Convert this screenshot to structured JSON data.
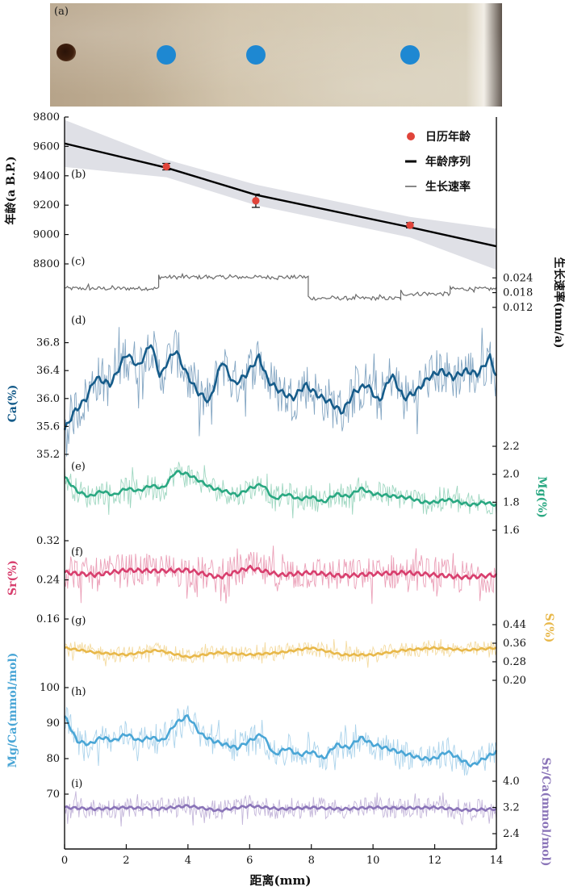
{
  "photo": {
    "label": "(a)",
    "sample_points_mm": [
      3.3,
      6.2,
      11.2
    ],
    "point_color": "#1e88d2"
  },
  "legend": {
    "calendar_age": "日历年龄",
    "age_series": "年龄序列",
    "growth_rate": "生长速率"
  },
  "x_axis": {
    "label": "距离(mm)",
    "range": [
      0,
      14
    ],
    "ticks": [
      "0",
      "2",
      "4",
      "6",
      "8",
      "10",
      "12",
      "14"
    ]
  },
  "chart_data": [
    {
      "panel": "(b)",
      "type": "line",
      "ylabel": "年龄(a B.P.)",
      "ylim": [
        8800,
        9800
      ],
      "yticks": [
        "9800",
        "9600",
        "9400",
        "9200",
        "9000",
        "8800"
      ],
      "age_model": {
        "x": [
          0,
          3.3,
          6.2,
          11.2,
          14
        ],
        "y": [
          9620,
          9455,
          9270,
          9050,
          8920
        ]
      },
      "uncertainty_band": {
        "x": [
          0,
          3.3,
          6.2,
          11.2,
          14
        ],
        "upper": [
          9780,
          9510,
          9340,
          9120,
          9040
        ],
        "lower": [
          9460,
          9390,
          9200,
          8980,
          8760
        ]
      },
      "calendar_ages": [
        {
          "x": 3.3,
          "y": 9462,
          "err": 22
        },
        {
          "x": 6.2,
          "y": 9230,
          "err": 45
        },
        {
          "x": 11.2,
          "y": 9063,
          "err": 18
        }
      ],
      "colors": {
        "line": "#000000",
        "band": "#dfe0e6",
        "points": "#e0443a"
      }
    },
    {
      "panel": "(c)",
      "type": "line",
      "ylabel": "生长速率(mm/a)",
      "yticks": [
        "0.024",
        "0.018",
        "0.012"
      ],
      "ylim": [
        0.009,
        0.032
      ],
      "segments": [
        {
          "x0": 0,
          "x1": 3.05,
          "value": 0.0197
        },
        {
          "x0": 3.05,
          "x1": 7.9,
          "value": 0.0243
        },
        {
          "x0": 7.9,
          "x1": 10.9,
          "value": 0.0157
        },
        {
          "x0": 10.9,
          "x1": 12.5,
          "value": 0.0175
        },
        {
          "x0": 12.5,
          "x1": 14,
          "value": 0.0195
        }
      ],
      "color": "#6b6b6b"
    },
    {
      "panel": "(d)",
      "type": "line",
      "ylabel": "Ca(%)",
      "ylim": [
        35.2,
        37.2
      ],
      "yticks": [
        "36.8",
        "36.4",
        "36.0",
        "35.6",
        "35.2"
      ],
      "smooth": {
        "x": [
          0,
          0.3,
          0.7,
          1.0,
          1.5,
          2.0,
          2.4,
          2.8,
          3.1,
          3.3,
          3.6,
          3.9,
          4.3,
          4.7,
          5.1,
          5.5,
          5.9,
          6.3,
          6.6,
          7.0,
          7.4,
          7.8,
          8.2,
          8.6,
          9.0,
          9.4,
          9.8,
          10.2,
          10.6,
          11.0,
          11.4,
          11.8,
          12.2,
          12.6,
          13.0,
          13.4,
          13.8,
          14.0
        ],
        "y": [
          35.55,
          35.8,
          36.0,
          36.3,
          36.2,
          36.65,
          36.45,
          36.8,
          36.3,
          36.5,
          36.7,
          36.4,
          36.1,
          35.95,
          36.55,
          36.2,
          36.35,
          36.6,
          36.25,
          36.1,
          36.0,
          36.2,
          36.05,
          35.95,
          35.8,
          36.1,
          36.2,
          35.95,
          36.35,
          36.0,
          36.1,
          36.3,
          36.4,
          36.3,
          36.4,
          36.35,
          36.6,
          36.3
        ]
      },
      "noise_amplitude": 0.35,
      "colors": {
        "smooth": "#165c8a",
        "raw": "#6f97b8"
      }
    },
    {
      "panel": "(e)",
      "type": "line",
      "ylabel": "Mg(%)",
      "ylim": [
        1.6,
        2.2
      ],
      "yticks": [
        "2.2",
        "2.0",
        "1.8",
        "1.6"
      ],
      "smooth": {
        "x": [
          0,
          0.4,
          0.8,
          1.2,
          1.6,
          2.0,
          2.4,
          2.8,
          3.2,
          3.6,
          4.0,
          4.4,
          4.8,
          5.2,
          5.6,
          6.0,
          6.4,
          6.8,
          7.2,
          7.6,
          8.0,
          8.4,
          8.8,
          9.2,
          9.6,
          10.0,
          10.4,
          10.8,
          11.2,
          11.6,
          12.0,
          12.4,
          12.8,
          13.2,
          13.6,
          14.0
        ],
        "y": [
          1.98,
          1.88,
          1.84,
          1.88,
          1.85,
          1.9,
          1.88,
          1.92,
          1.9,
          2.02,
          2.0,
          1.95,
          1.9,
          1.88,
          1.85,
          1.9,
          1.93,
          1.82,
          1.86,
          1.82,
          1.84,
          1.8,
          1.86,
          1.84,
          1.9,
          1.86,
          1.85,
          1.84,
          1.83,
          1.8,
          1.8,
          1.82,
          1.8,
          1.78,
          1.8,
          1.78
        ]
      },
      "noise_amplitude": 0.09,
      "colors": {
        "smooth": "#2aa882",
        "raw": "#8ed0b6"
      }
    },
    {
      "panel": "(f)",
      "type": "line",
      "ylabel": "Sr(%)",
      "ylim": [
        0.16,
        0.32
      ],
      "yticks": [
        "0.32",
        "0.24",
        "0.16"
      ],
      "smooth": {
        "x": [
          0,
          1,
          2,
          3,
          4,
          5,
          6,
          7,
          8,
          9,
          10,
          11,
          12,
          13,
          14
        ],
        "y": [
          0.255,
          0.25,
          0.26,
          0.258,
          0.26,
          0.245,
          0.265,
          0.25,
          0.255,
          0.248,
          0.252,
          0.255,
          0.25,
          0.245,
          0.25
        ]
      },
      "noise_amplitude": 0.035,
      "colors": {
        "smooth": "#d83f6e",
        "raw": "#e88fab"
      }
    },
    {
      "panel": "(g)",
      "type": "line",
      "ylabel": "S(%)",
      "ylim": [
        0.2,
        0.44
      ],
      "yticks": [
        "0.44",
        "0.36",
        "0.28",
        "0.20"
      ],
      "smooth": {
        "x": [
          0,
          1,
          2,
          3,
          4,
          5,
          6,
          7,
          8,
          9,
          10,
          11,
          12,
          13,
          14
        ],
        "y": [
          0.34,
          0.32,
          0.31,
          0.33,
          0.3,
          0.32,
          0.31,
          0.32,
          0.34,
          0.31,
          0.31,
          0.33,
          0.34,
          0.33,
          0.34
        ]
      },
      "noise_amplitude": 0.035,
      "colors": {
        "smooth": "#e8b84a",
        "raw": "#f2d58f"
      }
    },
    {
      "panel": "(h)",
      "type": "line",
      "ylabel": "Mg/Ca(mmol/mol)",
      "ylim": [
        70,
        100
      ],
      "yticks": [
        "100",
        "90",
        "80",
        "70"
      ],
      "smooth": {
        "x": [
          0,
          0.4,
          0.8,
          1.2,
          1.6,
          2.0,
          2.4,
          2.8,
          3.2,
          3.6,
          4.0,
          4.4,
          4.8,
          5.2,
          5.6,
          6.0,
          6.4,
          6.8,
          7.2,
          7.6,
          8.0,
          8.4,
          8.8,
          9.2,
          9.6,
          10.0,
          10.4,
          10.8,
          11.2,
          11.6,
          12.0,
          12.4,
          12.8,
          13.2,
          13.6,
          14.0
        ],
        "y": [
          92,
          85,
          84,
          86,
          85,
          87,
          85,
          86,
          85,
          90,
          92,
          87,
          85,
          84,
          83,
          85,
          87,
          81,
          83,
          81,
          82,
          80,
          84,
          83,
          86,
          84,
          83,
          82,
          81,
          80,
          80,
          82,
          80,
          78,
          80,
          82
        ]
      },
      "noise_amplitude": 4.2,
      "colors": {
        "smooth": "#4aa6d6",
        "raw": "#9ccbe8"
      }
    },
    {
      "panel": "(i)",
      "type": "line",
      "ylabel": "Sr/Ca(mmol/mol)",
      "ylim": [
        2.4,
        4.0
      ],
      "yticks": [
        "4.0",
        "3.2",
        "2.4"
      ],
      "smooth": {
        "x": [
          0,
          1,
          2,
          3,
          4,
          5,
          6,
          7,
          8,
          9,
          10,
          11,
          12,
          13,
          14
        ],
        "y": [
          3.2,
          3.15,
          3.2,
          3.15,
          3.25,
          3.1,
          3.25,
          3.15,
          3.2,
          3.15,
          3.2,
          3.18,
          3.2,
          3.12,
          3.15
        ]
      },
      "noise_amplitude": 0.32,
      "colors": {
        "smooth": "#8a74b8",
        "raw": "#baa9d4"
      }
    }
  ]
}
